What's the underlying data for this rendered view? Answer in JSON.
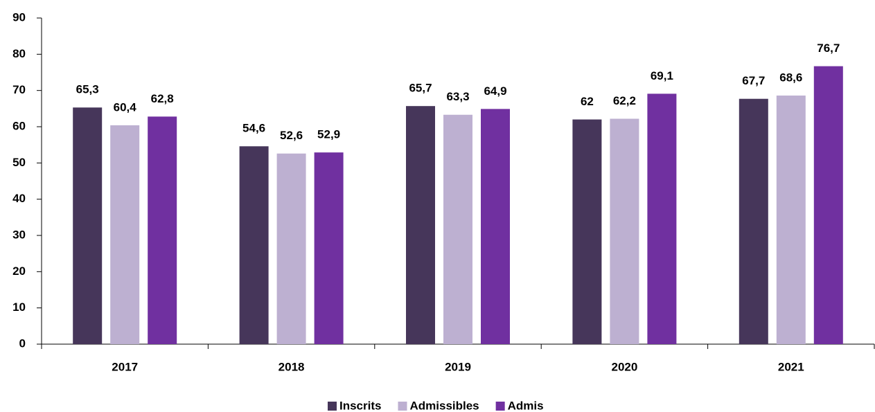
{
  "chart_data": {
    "type": "bar",
    "categories": [
      "2017",
      "2018",
      "2019",
      "2020",
      "2021"
    ],
    "series": [
      {
        "name": "Inscrits",
        "color": "#46365a",
        "values": [
          65.3,
          54.6,
          65.7,
          62,
          67.7
        ],
        "value_labels": [
          "65,3",
          "54,6",
          "65,7",
          "62",
          "67,7"
        ]
      },
      {
        "name": "Admissibles",
        "color": "#bdb0d1",
        "values": [
          60.4,
          52.6,
          63.3,
          62.2,
          68.6
        ],
        "value_labels": [
          "60,4",
          "52,6",
          "63,3",
          "62,2",
          "68,6"
        ]
      },
      {
        "name": "Admis",
        "color": "#7030a0",
        "values": [
          62.8,
          52.9,
          64.9,
          69.1,
          76.7
        ],
        "value_labels": [
          "62,8",
          "52,9",
          "64,9",
          "69,1",
          "76,7"
        ]
      }
    ],
    "ylim": [
      0,
      90
    ],
    "yticks": [
      0,
      10,
      20,
      30,
      40,
      50,
      60,
      70,
      80,
      90
    ],
    "legend": "bottom"
  }
}
